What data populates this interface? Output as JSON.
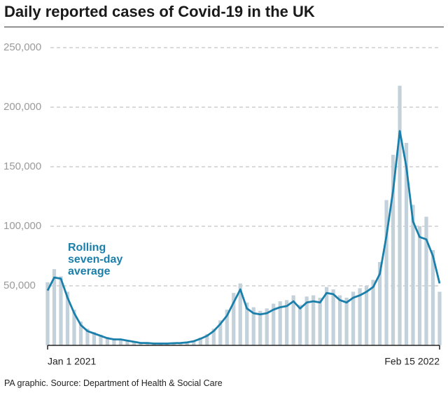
{
  "chart_data": {
    "type": "bar_line",
    "title": "Daily reported cases of Covid-19 in the UK",
    "source": "PA graphic. Source: Department of Health & Social Care",
    "categories": [
      "Jan 1 2021",
      null,
      null,
      null,
      null,
      null,
      null,
      null,
      null,
      null,
      null,
      null,
      null,
      null,
      null,
      null,
      null,
      null,
      null,
      null,
      null,
      null,
      null,
      null,
      null,
      null,
      null,
      null,
      null,
      null,
      null,
      null,
      null,
      null,
      null,
      null,
      null,
      null,
      null,
      null,
      null,
      null,
      null,
      null,
      null,
      null,
      null,
      null,
      null,
      null,
      null,
      null,
      null,
      null,
      null,
      null,
      null,
      null,
      null,
      "Feb 15 2022"
    ],
    "series": [
      {
        "color": "#c3d1da",
        "values": [
          53000,
          64000,
          58000,
          45000,
          30000,
          20000,
          14000,
          11000,
          9000,
          7000,
          6000,
          5500,
          4500,
          3500,
          2500,
          2200,
          1800,
          1800,
          1700,
          2000,
          2300,
          3000,
          4200,
          6500,
          9500,
          14000,
          21000,
          30000,
          44000,
          52000,
          36000,
          32000,
          29000,
          31000,
          35000,
          37000,
          38000,
          42000,
          34000,
          41000,
          42000,
          40000,
          49000,
          47000,
          42000,
          40000,
          45000,
          48000,
          50000,
          55000,
          70000,
          122000,
          160000,
          218000,
          170000,
          118000,
          100000,
          108000,
          80000,
          45000
        ]
      },
      {
        "name": "Rolling seven-day average",
        "color": "#1a7fab",
        "values": [
          46000,
          57000,
          56000,
          40000,
          27000,
          17000,
          12000,
          10000,
          8000,
          6000,
          5000,
          5000,
          4000,
          3000,
          2000,
          2000,
          1500,
          1500,
          1500,
          1800,
          2000,
          2500,
          3500,
          5500,
          8000,
          12000,
          18000,
          25000,
          36000,
          47000,
          31000,
          27000,
          26000,
          27000,
          30000,
          32000,
          33000,
          37000,
          31000,
          36000,
          37000,
          36000,
          44000,
          43000,
          38000,
          36000,
          40000,
          42000,
          45000,
          49000,
          60000,
          92000,
          130000,
          180000,
          150000,
          104000,
          91000,
          89000,
          75000,
          52000
        ]
      }
    ],
    "ylim": [
      0,
      250000
    ],
    "yticks": [
      {
        "value": 50000,
        "label": "50,000"
      },
      {
        "value": 100000,
        "label": "100,000"
      },
      {
        "value": 150000,
        "label": "150,000"
      },
      {
        "value": 200000,
        "label": "200,000"
      },
      {
        "value": 250000,
        "label": "250,000"
      }
    ],
    "grid": true
  }
}
